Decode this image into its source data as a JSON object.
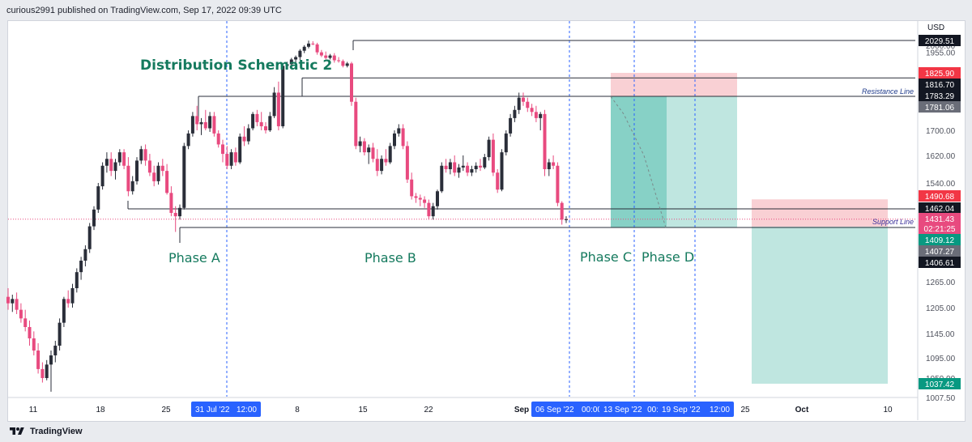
{
  "header": {
    "text": "curious2991 published on TradingView.com, Sep 17, 2022 09:39 UTC"
  },
  "footer": {
    "brand": "TradingView"
  },
  "colors": {
    "up": "#2a2e39",
    "down": "#e84a7f",
    "blue": "#2962ff",
    "teal": "#5fc2b3",
    "light_teal": "#bfe6e0",
    "light_red": "#f9d0d4",
    "annotation_green": "#157a5e",
    "resistance_text": "#1e3a8a",
    "support_text": "#3b2f9a"
  },
  "annotations": {
    "title": "Distribution Schematic 2",
    "phase_a": "Phase A",
    "phase_b": "Phase B",
    "phase_c": "Phase C",
    "phase_d": "Phase D",
    "resistance": "Resistance Line",
    "support": "Support Line"
  },
  "chart_data": {
    "type": "candlestick",
    "currency": "USD",
    "y_axis": {
      "ticks": [
        1007.5,
        1050.0,
        1095.0,
        1145.0,
        1205.0,
        1265.0,
        1540.0,
        1620.0,
        1700.0,
        1955.0,
        2000.0
      ],
      "labels": [
        "1007.50",
        "1050.00",
        "1095.00",
        "1145.00",
        "1205.00",
        "1265.00",
        "1540.00",
        "1620.00",
        "1700.00",
        "1955.00",
        "2000.00"
      ]
    },
    "x_axis": {
      "labels": [
        "11",
        "18",
        "25",
        "8",
        "15",
        "22",
        "Sep",
        "25",
        "Oct",
        "10"
      ],
      "highlighted": [
        "31 Jul '22",
        "12:00",
        "06 Sep '22",
        "00:00",
        "13 Sep '22",
        "00:",
        "19 Sep '22",
        "12:00"
      ]
    },
    "price_labels": [
      {
        "label": "2029.51",
        "value": 2029.51,
        "kind": "dark"
      },
      {
        "label": "1825.90",
        "value": 1825.9,
        "kind": "red"
      },
      {
        "label": "1816.70",
        "value": 1816.7,
        "kind": "dark"
      },
      {
        "label": "1783.29",
        "value": 1783.29,
        "kind": "dark"
      },
      {
        "label": "1781.06",
        "value": 1781.06,
        "kind": "gray"
      },
      {
        "label": "1490.68",
        "value": 1490.68,
        "kind": "red"
      },
      {
        "label": "1462.04",
        "value": 1462.04,
        "kind": "dark"
      },
      {
        "label": "1431.43",
        "value": 1431.43,
        "kind": "pink"
      },
      {
        "label": "02:21:25",
        "value": 1431.43,
        "kind": "pink-sub"
      },
      {
        "label": "1409.12",
        "value": 1409.12,
        "kind": "green"
      },
      {
        "label": "1407.27",
        "value": 1407.27,
        "kind": "gray"
      },
      {
        "label": "1406.61",
        "value": 1406.61,
        "kind": "dark"
      },
      {
        "label": "1037.42",
        "value": 1037.42,
        "kind": "green"
      }
    ],
    "levels": {
      "top_box": 2029.51,
      "resistance": 1816.7,
      "range_top": 1783.29,
      "range_mid": 1462.04,
      "support": 1406.61
    },
    "position_1": {
      "entry": 1783.29,
      "stop": 1825.9,
      "target": 1407.27
    },
    "position_2": {
      "entry": 1409.12,
      "stop": 1490.68,
      "target": 1037.42
    },
    "candles": [
      {
        "o": 1230,
        "h": 1250,
        "l": 1200,
        "c": 1215
      },
      {
        "o": 1215,
        "h": 1235,
        "l": 1195,
        "c": 1225
      },
      {
        "o": 1225,
        "h": 1240,
        "l": 1190,
        "c": 1200
      },
      {
        "o": 1200,
        "h": 1215,
        "l": 1170,
        "c": 1180
      },
      {
        "o": 1180,
        "h": 1200,
        "l": 1150,
        "c": 1160
      },
      {
        "o": 1160,
        "h": 1175,
        "l": 1120,
        "c": 1135
      },
      {
        "o": 1135,
        "h": 1150,
        "l": 1100,
        "c": 1110
      },
      {
        "o": 1110,
        "h": 1125,
        "l": 1060,
        "c": 1070
      },
      {
        "o": 1070,
        "h": 1085,
        "l": 1040,
        "c": 1050
      },
      {
        "o": 1050,
        "h": 1090,
        "l": 1045,
        "c": 1080
      },
      {
        "o": 1080,
        "h": 1110,
        "l": 1020,
        "c": 1100
      },
      {
        "o": 1100,
        "h": 1130,
        "l": 1085,
        "c": 1120
      },
      {
        "o": 1120,
        "h": 1180,
        "l": 1110,
        "c": 1170
      },
      {
        "o": 1170,
        "h": 1230,
        "l": 1160,
        "c": 1225
      },
      {
        "o": 1225,
        "h": 1245,
        "l": 1205,
        "c": 1215
      },
      {
        "o": 1215,
        "h": 1260,
        "l": 1205,
        "c": 1250
      },
      {
        "o": 1250,
        "h": 1300,
        "l": 1240,
        "c": 1290
      },
      {
        "o": 1290,
        "h": 1330,
        "l": 1270,
        "c": 1320
      },
      {
        "o": 1320,
        "h": 1360,
        "l": 1305,
        "c": 1350
      },
      {
        "o": 1350,
        "h": 1420,
        "l": 1340,
        "c": 1410
      },
      {
        "o": 1410,
        "h": 1470,
        "l": 1400,
        "c": 1460
      },
      {
        "o": 1460,
        "h": 1540,
        "l": 1450,
        "c": 1530
      },
      {
        "o": 1530,
        "h": 1600,
        "l": 1520,
        "c": 1590
      },
      {
        "o": 1590,
        "h": 1630,
        "l": 1570,
        "c": 1610
      },
      {
        "o": 1610,
        "h": 1630,
        "l": 1560,
        "c": 1575
      },
      {
        "o": 1575,
        "h": 1610,
        "l": 1550,
        "c": 1600
      },
      {
        "o": 1600,
        "h": 1640,
        "l": 1590,
        "c": 1630
      },
      {
        "o": 1630,
        "h": 1640,
        "l": 1580,
        "c": 1590
      },
      {
        "o": 1590,
        "h": 1615,
        "l": 1500,
        "c": 1515
      },
      {
        "o": 1515,
        "h": 1560,
        "l": 1505,
        "c": 1545
      },
      {
        "o": 1545,
        "h": 1615,
        "l": 1535,
        "c": 1605
      },
      {
        "o": 1605,
        "h": 1650,
        "l": 1595,
        "c": 1640
      },
      {
        "o": 1640,
        "h": 1655,
        "l": 1590,
        "c": 1605
      },
      {
        "o": 1605,
        "h": 1625,
        "l": 1560,
        "c": 1570
      },
      {
        "o": 1570,
        "h": 1590,
        "l": 1530,
        "c": 1545
      },
      {
        "o": 1545,
        "h": 1600,
        "l": 1535,
        "c": 1590
      },
      {
        "o": 1590,
        "h": 1610,
        "l": 1560,
        "c": 1575
      },
      {
        "o": 1575,
        "h": 1595,
        "l": 1505,
        "c": 1510
      },
      {
        "o": 1510,
        "h": 1530,
        "l": 1440,
        "c": 1450
      },
      {
        "o": 1450,
        "h": 1470,
        "l": 1395,
        "c": 1440
      },
      {
        "o": 1440,
        "h": 1475,
        "l": 1430,
        "c": 1465
      },
      {
        "o": 1465,
        "h": 1660,
        "l": 1460,
        "c": 1650
      },
      {
        "o": 1650,
        "h": 1700,
        "l": 1640,
        "c": 1690
      },
      {
        "o": 1690,
        "h": 1745,
        "l": 1680,
        "c": 1735
      },
      {
        "o": 1735,
        "h": 1760,
        "l": 1700,
        "c": 1715
      },
      {
        "o": 1715,
        "h": 1730,
        "l": 1685,
        "c": 1720
      },
      {
        "o": 1720,
        "h": 1750,
        "l": 1700,
        "c": 1705
      },
      {
        "o": 1705,
        "h": 1745,
        "l": 1695,
        "c": 1735
      },
      {
        "o": 1735,
        "h": 1745,
        "l": 1680,
        "c": 1690
      },
      {
        "o": 1690,
        "h": 1700,
        "l": 1645,
        "c": 1655
      },
      {
        "o": 1655,
        "h": 1670,
        "l": 1600,
        "c": 1625
      },
      {
        "o": 1625,
        "h": 1650,
        "l": 1580,
        "c": 1590
      },
      {
        "o": 1590,
        "h": 1640,
        "l": 1580,
        "c": 1630
      },
      {
        "o": 1630,
        "h": 1645,
        "l": 1590,
        "c": 1600
      },
      {
        "o": 1600,
        "h": 1690,
        "l": 1595,
        "c": 1680
      },
      {
        "o": 1680,
        "h": 1710,
        "l": 1650,
        "c": 1665
      },
      {
        "o": 1665,
        "h": 1715,
        "l": 1655,
        "c": 1705
      },
      {
        "o": 1705,
        "h": 1745,
        "l": 1700,
        "c": 1740
      },
      {
        "o": 1740,
        "h": 1750,
        "l": 1710,
        "c": 1720
      },
      {
        "o": 1720,
        "h": 1745,
        "l": 1700,
        "c": 1710
      },
      {
        "o": 1710,
        "h": 1720,
        "l": 1690,
        "c": 1700
      },
      {
        "o": 1700,
        "h": 1745,
        "l": 1695,
        "c": 1735
      },
      {
        "o": 1735,
        "h": 1800,
        "l": 1730,
        "c": 1790
      },
      {
        "o": 1790,
        "h": 1810,
        "l": 1700,
        "c": 1710
      },
      {
        "o": 1710,
        "h": 1880,
        "l": 1705,
        "c": 1870
      },
      {
        "o": 1870,
        "h": 1895,
        "l": 1850,
        "c": 1880
      },
      {
        "o": 1880,
        "h": 1920,
        "l": 1860,
        "c": 1910
      },
      {
        "o": 1910,
        "h": 1935,
        "l": 1890,
        "c": 1925
      },
      {
        "o": 1925,
        "h": 1975,
        "l": 1905,
        "c": 1965
      },
      {
        "o": 1965,
        "h": 2000,
        "l": 1950,
        "c": 1990
      },
      {
        "o": 1990,
        "h": 2029,
        "l": 1980,
        "c": 2010
      },
      {
        "o": 2010,
        "h": 2025,
        "l": 2000,
        "c": 2005
      },
      {
        "o": 2005,
        "h": 2015,
        "l": 1940,
        "c": 1955
      },
      {
        "o": 1955,
        "h": 1970,
        "l": 1925,
        "c": 1935
      },
      {
        "o": 1935,
        "h": 1960,
        "l": 1910,
        "c": 1920
      },
      {
        "o": 1920,
        "h": 1945,
        "l": 1910,
        "c": 1935
      },
      {
        "o": 1935,
        "h": 1950,
        "l": 1890,
        "c": 1905
      },
      {
        "o": 1905,
        "h": 1925,
        "l": 1890,
        "c": 1900
      },
      {
        "o": 1900,
        "h": 1910,
        "l": 1860,
        "c": 1870
      },
      {
        "o": 1870,
        "h": 1895,
        "l": 1860,
        "c": 1885
      },
      {
        "o": 1885,
        "h": 1895,
        "l": 1760,
        "c": 1770
      },
      {
        "o": 1770,
        "h": 1780,
        "l": 1640,
        "c": 1650
      },
      {
        "o": 1650,
        "h": 1680,
        "l": 1630,
        "c": 1665
      },
      {
        "o": 1665,
        "h": 1675,
        "l": 1620,
        "c": 1630
      },
      {
        "o": 1630,
        "h": 1655,
        "l": 1595,
        "c": 1645
      },
      {
        "o": 1645,
        "h": 1660,
        "l": 1600,
        "c": 1610
      },
      {
        "o": 1610,
        "h": 1640,
        "l": 1560,
        "c": 1575
      },
      {
        "o": 1575,
        "h": 1620,
        "l": 1565,
        "c": 1610
      },
      {
        "o": 1610,
        "h": 1640,
        "l": 1590,
        "c": 1600
      },
      {
        "o": 1600,
        "h": 1660,
        "l": 1595,
        "c": 1650
      },
      {
        "o": 1650,
        "h": 1700,
        "l": 1640,
        "c": 1690
      },
      {
        "o": 1690,
        "h": 1715,
        "l": 1680,
        "c": 1705
      },
      {
        "o": 1705,
        "h": 1715,
        "l": 1640,
        "c": 1650
      },
      {
        "o": 1650,
        "h": 1665,
        "l": 1540,
        "c": 1550
      },
      {
        "o": 1550,
        "h": 1570,
        "l": 1490,
        "c": 1500
      },
      {
        "o": 1500,
        "h": 1510,
        "l": 1480,
        "c": 1495
      },
      {
        "o": 1495,
        "h": 1505,
        "l": 1470,
        "c": 1490
      },
      {
        "o": 1490,
        "h": 1500,
        "l": 1465,
        "c": 1480
      },
      {
        "o": 1480,
        "h": 1490,
        "l": 1430,
        "c": 1440
      },
      {
        "o": 1440,
        "h": 1480,
        "l": 1430,
        "c": 1470
      },
      {
        "o": 1470,
        "h": 1520,
        "l": 1460,
        "c": 1515
      },
      {
        "o": 1515,
        "h": 1600,
        "l": 1510,
        "c": 1590
      },
      {
        "o": 1590,
        "h": 1610,
        "l": 1570,
        "c": 1580
      },
      {
        "o": 1580,
        "h": 1610,
        "l": 1565,
        "c": 1600
      },
      {
        "o": 1600,
        "h": 1620,
        "l": 1560,
        "c": 1570
      },
      {
        "o": 1570,
        "h": 1595,
        "l": 1555,
        "c": 1585
      },
      {
        "o": 1585,
        "h": 1620,
        "l": 1575,
        "c": 1590
      },
      {
        "o": 1590,
        "h": 1600,
        "l": 1560,
        "c": 1570
      },
      {
        "o": 1570,
        "h": 1590,
        "l": 1560,
        "c": 1580
      },
      {
        "o": 1580,
        "h": 1600,
        "l": 1570,
        "c": 1590
      },
      {
        "o": 1590,
        "h": 1610,
        "l": 1575,
        "c": 1585
      },
      {
        "o": 1585,
        "h": 1625,
        "l": 1580,
        "c": 1615
      },
      {
        "o": 1615,
        "h": 1680,
        "l": 1605,
        "c": 1670
      },
      {
        "o": 1670,
        "h": 1690,
        "l": 1560,
        "c": 1570
      },
      {
        "o": 1570,
        "h": 1580,
        "l": 1510,
        "c": 1520
      },
      {
        "o": 1520,
        "h": 1640,
        "l": 1515,
        "c": 1630
      },
      {
        "o": 1630,
        "h": 1700,
        "l": 1620,
        "c": 1690
      },
      {
        "o": 1690,
        "h": 1740,
        "l": 1680,
        "c": 1730
      },
      {
        "o": 1730,
        "h": 1760,
        "l": 1720,
        "c": 1750
      },
      {
        "o": 1750,
        "h": 1790,
        "l": 1740,
        "c": 1780
      },
      {
        "o": 1780,
        "h": 1790,
        "l": 1760,
        "c": 1770
      },
      {
        "o": 1770,
        "h": 1780,
        "l": 1745,
        "c": 1755
      },
      {
        "o": 1755,
        "h": 1765,
        "l": 1735,
        "c": 1745
      },
      {
        "o": 1745,
        "h": 1760,
        "l": 1720,
        "c": 1730
      },
      {
        "o": 1730,
        "h": 1745,
        "l": 1700,
        "c": 1740
      },
      {
        "o": 1740,
        "h": 1750,
        "l": 1560,
        "c": 1580
      },
      {
        "o": 1580,
        "h": 1610,
        "l": 1560,
        "c": 1600
      },
      {
        "o": 1600,
        "h": 1620,
        "l": 1580,
        "c": 1590
      },
      {
        "o": 1590,
        "h": 1600,
        "l": 1470,
        "c": 1480
      },
      {
        "o": 1480,
        "h": 1485,
        "l": 1415,
        "c": 1430
      },
      {
        "o": 1430,
        "h": 1440,
        "l": 1420,
        "c": 1431
      }
    ]
  }
}
